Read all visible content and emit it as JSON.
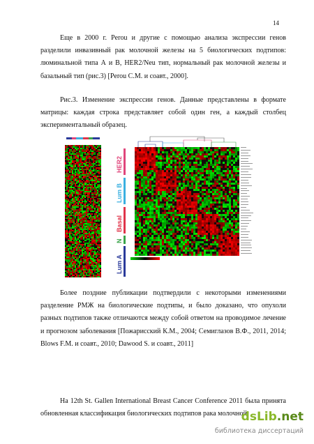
{
  "page_number": "14",
  "paragraph_1": "Еще в 2000 г. Perou и другие с помощью анализа экспрессии генов разделили инвазивный рак молочной железы на 5 биологических подтипов: люминальной типа А и В, HER2/Neu тип, нормальный рак молочной железы и базальный тип (рис.3) [Perou C.M. и соавт., 2000].",
  "caption": "Рис.3. Изменение экспрессии генов. Данные представлены в формате матрицы: каждая строка представляет собой один ген, а каждый столбец экспериментальный образец.",
  "figure": {
    "subtypes": [
      {
        "label": "HER2",
        "color": "#e0457b"
      },
      {
        "label": "Lum B",
        "color": "#3ab0e0"
      },
      {
        "label": "Basal",
        "color": "#e0344a"
      },
      {
        "label": "N",
        "color": "#3aa44a"
      },
      {
        "label": "Lum A",
        "color": "#2a3a9a"
      }
    ]
  },
  "paragraph_2": "Более поздние публикации подтвердили с некоторыми изменениями разделение РМЖ на биологические подтипы, и было доказано, что опухоли разных подтипов также отличаются между собой ответом на проводимое лечение и прогнозом заболевания [Пожарисский К.М., 2004; Семиглазов В.Ф., 2011, 2014; Blows F.M. и соавт., 2010; Dawood S. и соавт., 2011]",
  "paragraph_3": "На 12th St. Gallen International Breast Cancer Conference 2011 была принята обновленная классификация биологических подтипов рака молочной",
  "watermark": {
    "logo_main": "dsLib",
    "logo_tld": ".net",
    "subtitle": "библиотека диссертаций"
  }
}
